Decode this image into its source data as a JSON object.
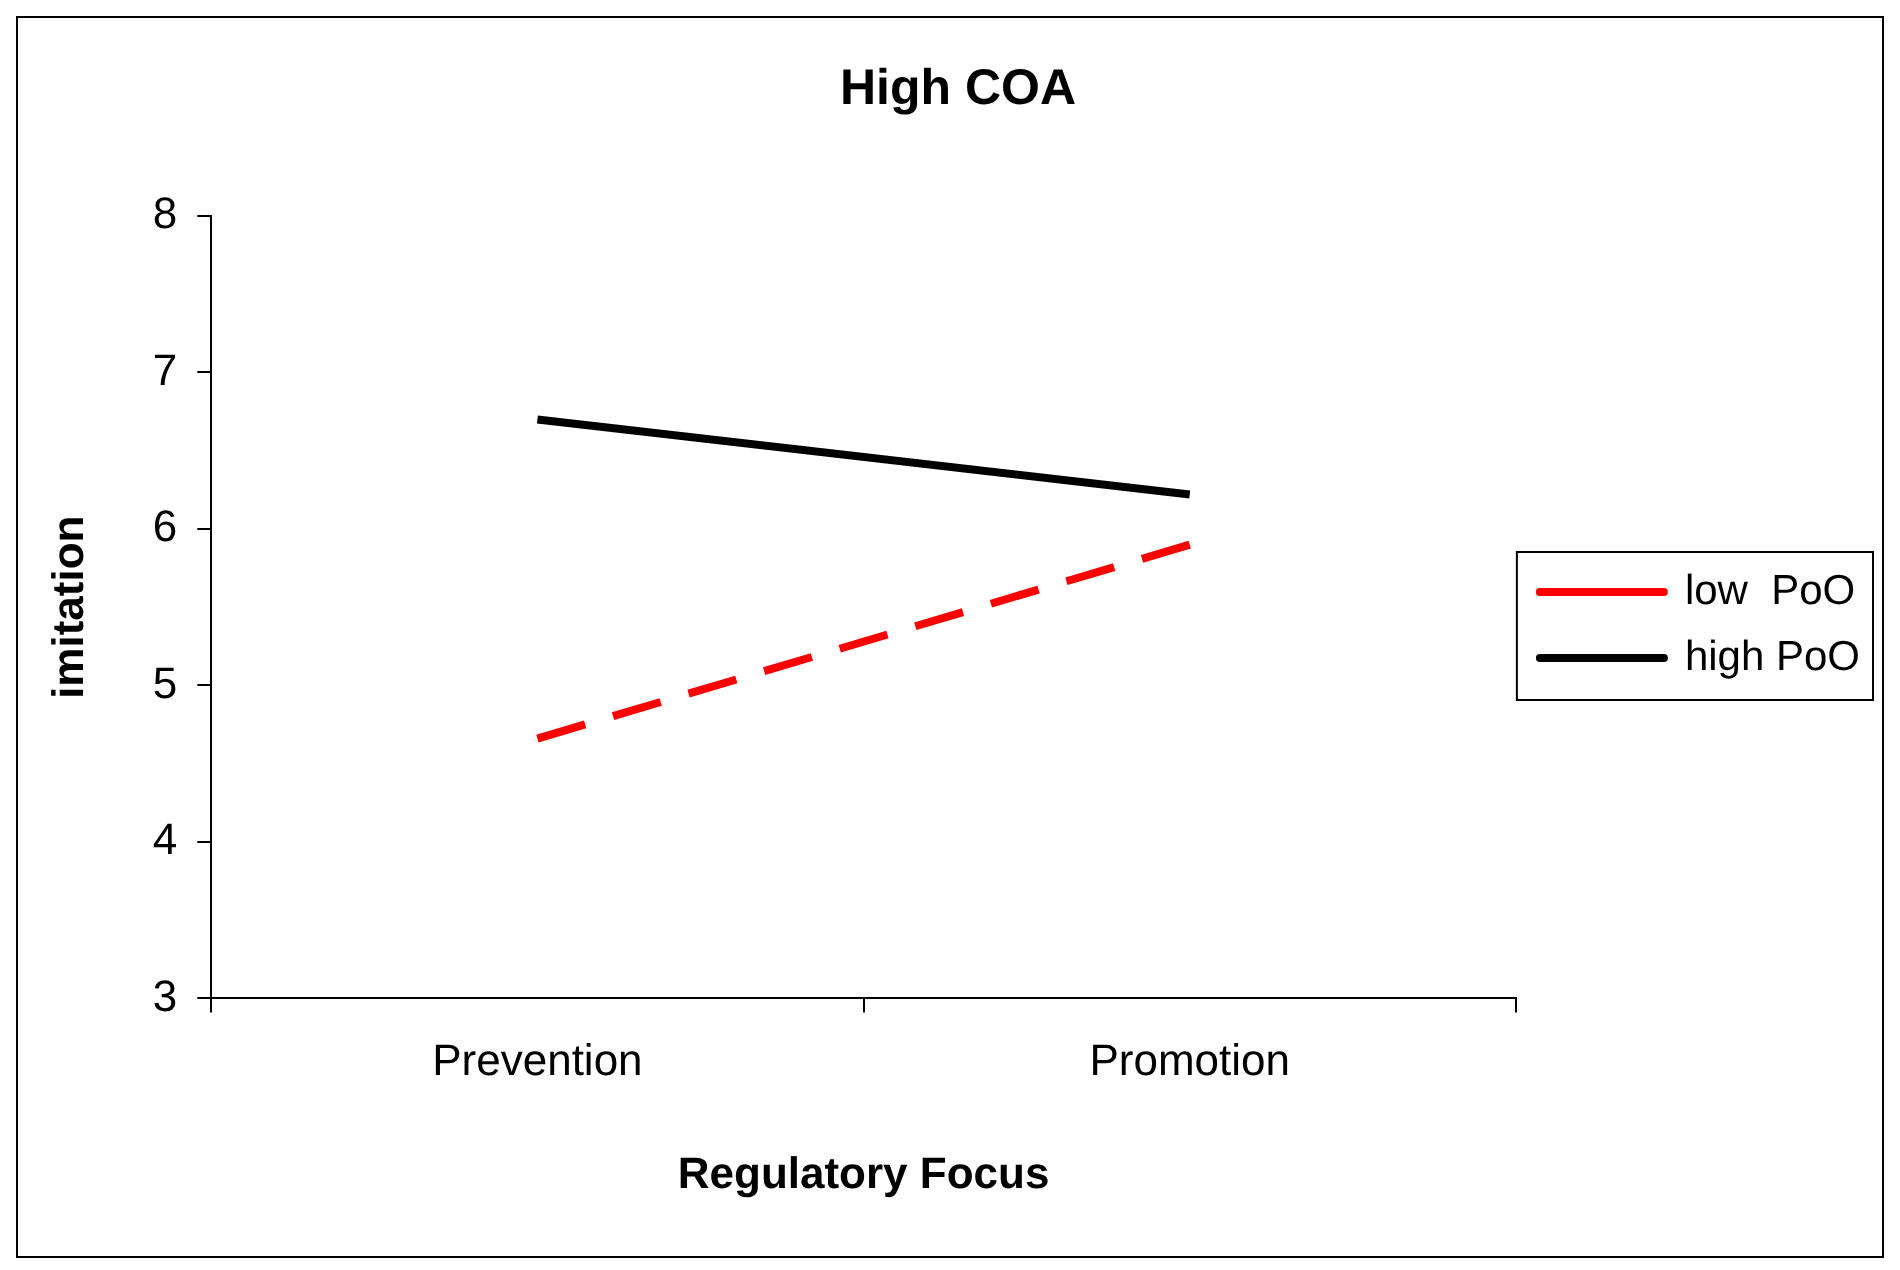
{
  "chart_data": {
    "type": "line",
    "title": "High COA",
    "xlabel": "Regulatory Focus",
    "ylabel": "imitation",
    "categories": [
      "Prevention",
      "Promotion"
    ],
    "series": [
      {
        "name": "low  PoO",
        "color": "#ff0000",
        "values": [
          4.66,
          5.9
        ],
        "line_style": "dashed"
      },
      {
        "name": "high PoO",
        "color": "#000000",
        "values": [
          6.7,
          6.22
        ],
        "line_style": "solid"
      }
    ],
    "ylim": [
      3,
      8
    ],
    "yticks": [
      3,
      4,
      5,
      6,
      7,
      8
    ],
    "grid": false,
    "legend": "right",
    "marker": "none"
  }
}
